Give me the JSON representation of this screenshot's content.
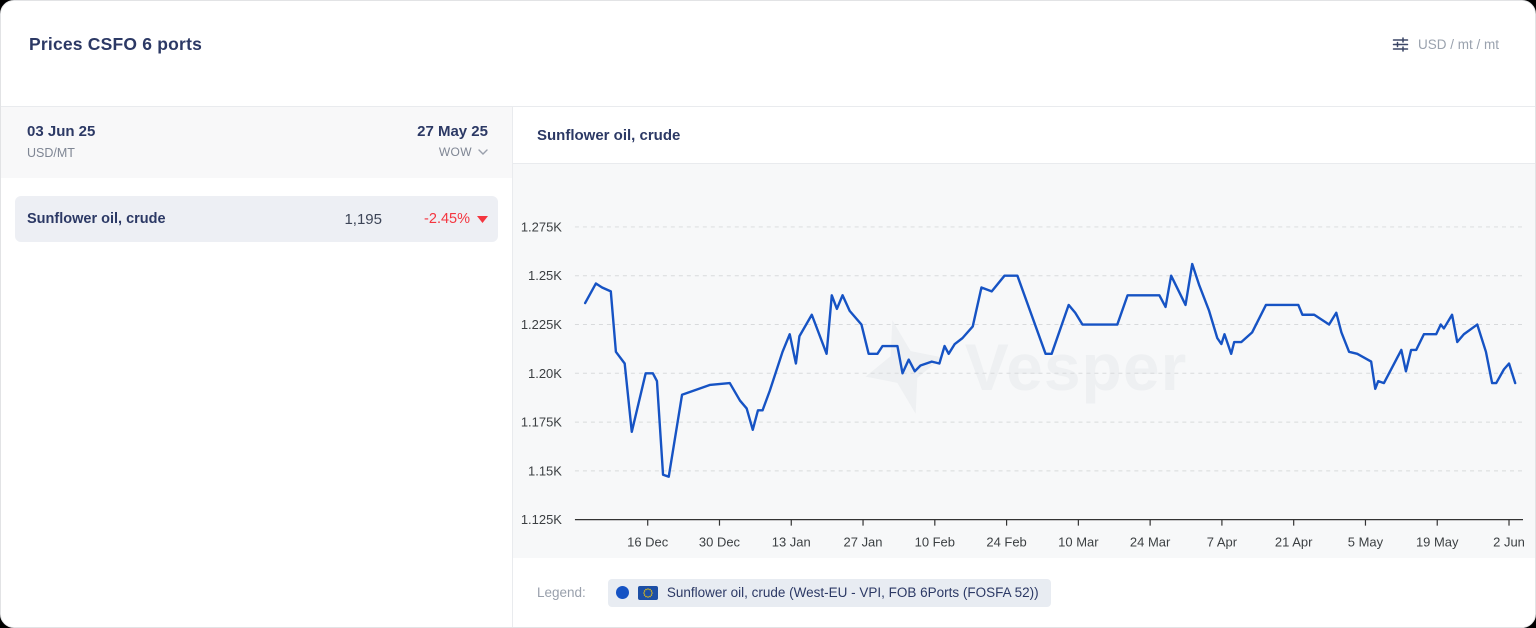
{
  "header": {
    "title": "Prices CSFO 6 ports",
    "units": "USD / mt / mt"
  },
  "left_panel": {
    "current_date": "03 Jun 25",
    "unit_label": "USD/MT",
    "compare_date": "27 May 25",
    "compare_mode": "WOW",
    "rows": [
      {
        "name": "Sunflower oil, crude",
        "value": "1,195",
        "change": "-2.45%",
        "direction": "down"
      }
    ]
  },
  "chart": {
    "title": "Sunflower oil, crude",
    "watermark": "Vesper"
  },
  "legend": {
    "label": "Legend:",
    "series_label": "Sunflower oil, crude (West-EU - VPI, FOB 6Ports (FOSFA 52))"
  },
  "colors": {
    "line": "#1653c4",
    "navy": "#2c3965",
    "negative": "#f4353f",
    "grid": "#d8dadc",
    "axis": "#333333",
    "axis_label": "#3c4043",
    "watermark": "#eef0f2",
    "eu_flag_blue": "#1d4fa5",
    "eu_star_yellow": "#ffcc00"
  },
  "chart_data": {
    "type": "line",
    "title": "Sunflower oil, crude",
    "ylabel": "",
    "xlabel": "",
    "ylim": [
      1125,
      1275
    ],
    "xlim_days": [
      0,
      182
    ],
    "grid": "dashed-horizontal",
    "legend_position": "bottom",
    "y_ticks": [
      {
        "label": "1.275K",
        "value": 1275
      },
      {
        "label": "1.25K",
        "value": 1250
      },
      {
        "label": "1.225K",
        "value": 1225
      },
      {
        "label": "1.20K",
        "value": 1200
      },
      {
        "label": "1.175K",
        "value": 1175
      },
      {
        "label": "1.15K",
        "value": 1150
      },
      {
        "label": "1.125K",
        "value": 1125
      }
    ],
    "x_ticks": [
      {
        "label": "16 Dec",
        "day": 14
      },
      {
        "label": "30 Dec",
        "day": 28
      },
      {
        "label": "13 Jan",
        "day": 42
      },
      {
        "label": "27 Jan",
        "day": 56
      },
      {
        "label": "10 Feb",
        "day": 70
      },
      {
        "label": "24 Feb",
        "day": 84
      },
      {
        "label": "10 Mar",
        "day": 98
      },
      {
        "label": "24 Mar",
        "day": 112
      },
      {
        "label": "7 Apr",
        "day": 126
      },
      {
        "label": "21 Apr",
        "day": 140
      },
      {
        "label": "5 May",
        "day": 154
      },
      {
        "label": "19 May",
        "day": 168
      },
      {
        "label": "2 Jun",
        "day": 182
      }
    ],
    "series": [
      {
        "name": "Sunflower oil, crude (West-EU - VPI, FOB 6Ports (FOSFA 52))",
        "color": "#1653c4",
        "points": [
          [
            1.8,
            1236
          ],
          [
            3.9,
            1246
          ],
          [
            5.1,
            1244
          ],
          [
            6.8,
            1242
          ],
          [
            7.8,
            1211
          ],
          [
            9.5,
            1205
          ],
          [
            10.9,
            1170
          ],
          [
            13.6,
            1200
          ],
          [
            15,
            1200
          ],
          [
            15.8,
            1196
          ],
          [
            17,
            1148
          ],
          [
            18.1,
            1147
          ],
          [
            20.7,
            1189
          ],
          [
            21.8,
            1190
          ],
          [
            26.1,
            1194
          ],
          [
            30,
            1195
          ],
          [
            32,
            1186
          ],
          [
            33.3,
            1182
          ],
          [
            34.5,
            1171
          ],
          [
            35.5,
            1181
          ],
          [
            36.4,
            1181
          ],
          [
            37.8,
            1191
          ],
          [
            40.3,
            1211
          ],
          [
            41.7,
            1220
          ],
          [
            42.9,
            1205
          ],
          [
            43.6,
            1219
          ],
          [
            46,
            1230
          ],
          [
            48.9,
            1210
          ],
          [
            49.9,
            1240
          ],
          [
            50.9,
            1233
          ],
          [
            52,
            1240
          ],
          [
            53.4,
            1232
          ],
          [
            55.7,
            1225
          ],
          [
            57.1,
            1210
          ],
          [
            58.8,
            1210
          ],
          [
            59.8,
            1214
          ],
          [
            62.7,
            1214
          ],
          [
            63.7,
            1200
          ],
          [
            64.9,
            1207
          ],
          [
            66.1,
            1201
          ],
          [
            67.2,
            1204
          ],
          [
            69.4,
            1206
          ],
          [
            70.9,
            1205
          ],
          [
            71.9,
            1214
          ],
          [
            72.7,
            1210
          ],
          [
            73.9,
            1215
          ],
          [
            75.4,
            1218
          ],
          [
            77.4,
            1224
          ],
          [
            79.1,
            1244
          ],
          [
            81.1,
            1242
          ],
          [
            83.6,
            1250
          ],
          [
            86.1,
            1250
          ],
          [
            91.6,
            1210
          ],
          [
            92.8,
            1210
          ],
          [
            96.1,
            1235
          ],
          [
            97.4,
            1231
          ],
          [
            98.8,
            1225
          ],
          [
            105.6,
            1225
          ],
          [
            107.6,
            1240
          ],
          [
            113.8,
            1240
          ],
          [
            115,
            1234
          ],
          [
            116.1,
            1250
          ],
          [
            118.9,
            1235
          ],
          [
            120.2,
            1256
          ],
          [
            121.6,
            1245
          ],
          [
            123.5,
            1232
          ],
          [
            125.1,
            1218
          ],
          [
            125.9,
            1215
          ],
          [
            126.5,
            1220
          ],
          [
            127.8,
            1210
          ],
          [
            128.4,
            1216
          ],
          [
            129.8,
            1216
          ],
          [
            131.9,
            1221
          ],
          [
            134.6,
            1235
          ],
          [
            140.9,
            1235
          ],
          [
            141.7,
            1230
          ],
          [
            144,
            1230
          ],
          [
            146.9,
            1225
          ],
          [
            148.3,
            1231
          ],
          [
            149.3,
            1221
          ],
          [
            150.8,
            1211
          ],
          [
            152.4,
            1210
          ],
          [
            155.1,
            1206
          ],
          [
            155.9,
            1192
          ],
          [
            156.5,
            1196
          ],
          [
            157.6,
            1195
          ],
          [
            161,
            1212
          ],
          [
            161.9,
            1201
          ],
          [
            162.9,
            1212
          ],
          [
            163.9,
            1212
          ],
          [
            165.4,
            1220
          ],
          [
            167.8,
            1220
          ],
          [
            168.7,
            1225
          ],
          [
            169.3,
            1223
          ],
          [
            170.9,
            1230
          ],
          [
            171.9,
            1216
          ],
          [
            173.2,
            1220
          ],
          [
            175.8,
            1225
          ],
          [
            177.5,
            1211
          ],
          [
            178.7,
            1195
          ],
          [
            179.5,
            1195
          ],
          [
            181,
            1202
          ],
          [
            182,
            1205
          ],
          [
            183.2,
            1195
          ]
        ]
      }
    ]
  }
}
